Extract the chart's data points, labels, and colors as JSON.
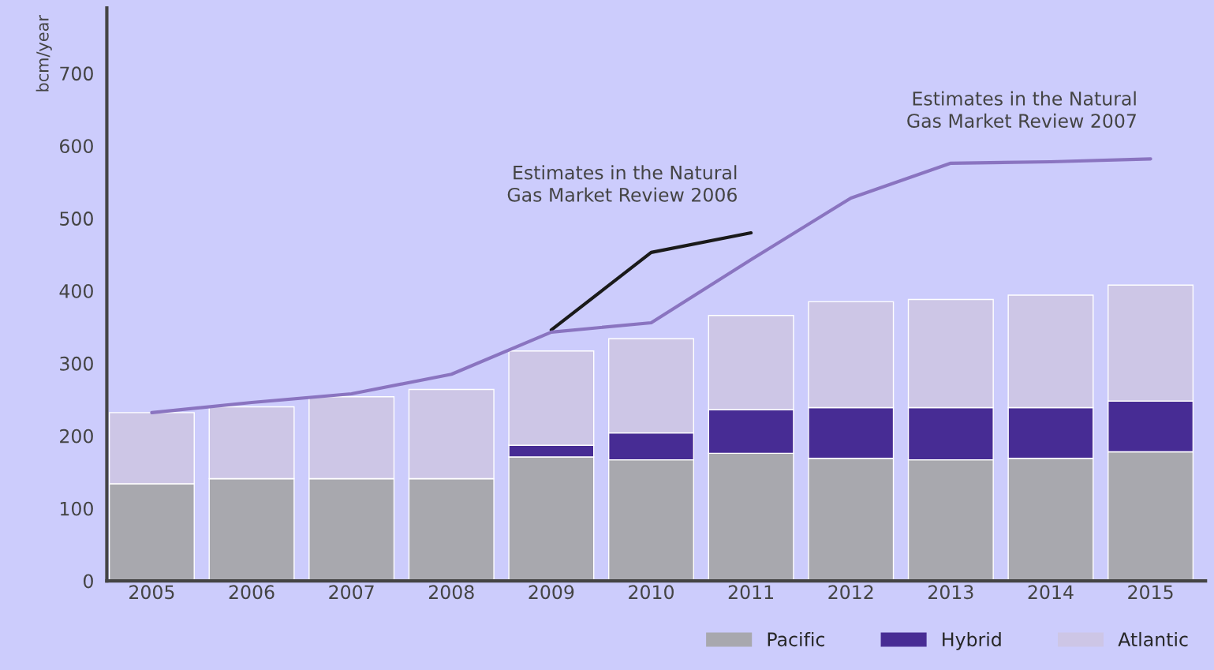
{
  "chart_data": {
    "type": "bar",
    "stacked": true,
    "ylabel": "bcm/year",
    "categories": [
      "2005",
      "2006",
      "2007",
      "2008",
      "2009",
      "2010",
      "2011",
      "2012",
      "2013",
      "2014",
      "2015"
    ],
    "series": [
      {
        "name": "Pacific",
        "color": "#a8a8ae",
        "values": [
          134,
          141,
          141,
          141,
          171,
          167,
          176,
          169,
          167,
          169,
          178
        ]
      },
      {
        "name": "Hybrid",
        "color": "#472c94",
        "values": [
          0,
          0,
          0,
          0,
          16,
          37,
          60,
          70,
          72,
          70,
          70
        ]
      },
      {
        "name": "Atlantic",
        "color": "#cdc6e6",
        "values": [
          98,
          99,
          113,
          123,
          130,
          130,
          130,
          146,
          149,
          155,
          160
        ]
      },
      {
        "type": "line",
        "color": "#1a1a1a",
        "values": [
          null,
          null,
          null,
          null,
          346,
          453,
          480,
          null,
          null,
          null,
          null
        ]
      },
      {
        "type": "line",
        "color": "#8a74c0",
        "values": [
          232,
          246,
          258,
          285,
          343,
          356,
          443,
          528,
          576,
          578,
          582
        ]
      }
    ],
    "ylim": [
      0,
      790
    ],
    "yticks": [
      0,
      100,
      200,
      300,
      400,
      500,
      600,
      700
    ],
    "grid": false,
    "legend": "bottom right",
    "annotations": [
      {
        "text": "Estimates in the Natural\nGas Market Review 2006",
        "x": "2011",
        "y": 480
      },
      {
        "text": "Estimates in the Natural\nGas Market Review 2007",
        "x": "2015",
        "y": 582
      }
    ]
  }
}
